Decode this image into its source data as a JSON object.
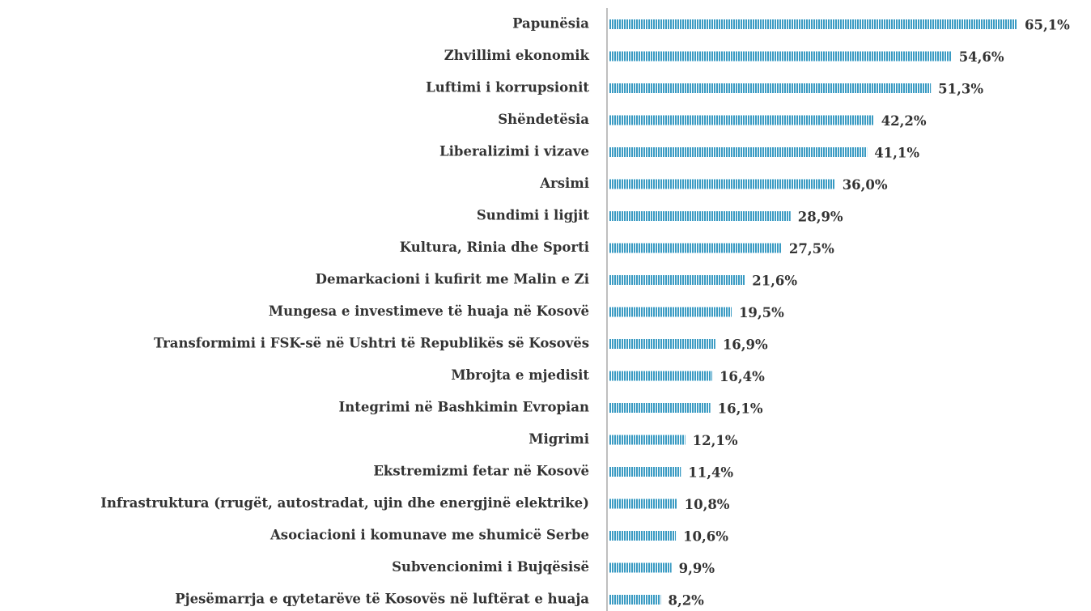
{
  "chart_data": {
    "type": "bar",
    "orientation": "horizontal",
    "color": "#3a9bc3",
    "categories": [
      "Papunësia",
      "Zhvillimi ekonomik",
      "Luftimi i korrupsionit",
      "Shëndetësia",
      "Liberalizimi i vizave",
      "Arsimi",
      "Sundimi i ligjit",
      "Kultura, Rinia dhe Sporti",
      "Demarkacioni i kufirit me Malin e Zi",
      "Mungesa e investimeve të huaja në Kosovë",
      "Transformimi i FSK-së në Ushtri të Republikës së Kosovës",
      "Mbrojta e mjedisit",
      "Integrimi në Bashkimin Evropian",
      "Migrimi",
      "Ekstremizmi fetar në Kosovë",
      "Infrastruktura (rrugët, autostradat, ujin dhe energjinë elektrike)",
      "Asociacioni i komunave me shumicë Serbe",
      "Subvencionimi i Bujqësisë",
      "Pjesëmarrja e qytetarëve të Kosovës në luftërat e huaja"
    ],
    "values": [
      65.1,
      54.6,
      51.3,
      42.2,
      41.1,
      36.0,
      28.9,
      27.5,
      21.6,
      19.5,
      16.9,
      16.4,
      16.1,
      12.1,
      11.4,
      10.8,
      10.6,
      9.9,
      8.2
    ],
    "value_labels": [
      "65,1%",
      "54,6%",
      "51,3%",
      "42,2%",
      "41,1%",
      "36,0%",
      "28,9%",
      "27,5%",
      "21,6%",
      "19,5%",
      "16,9%",
      "16,4%",
      "16,1%",
      "12,1%",
      "11,4%",
      "10,8%",
      "10,6%",
      "9,9%",
      "8,2%"
    ]
  }
}
